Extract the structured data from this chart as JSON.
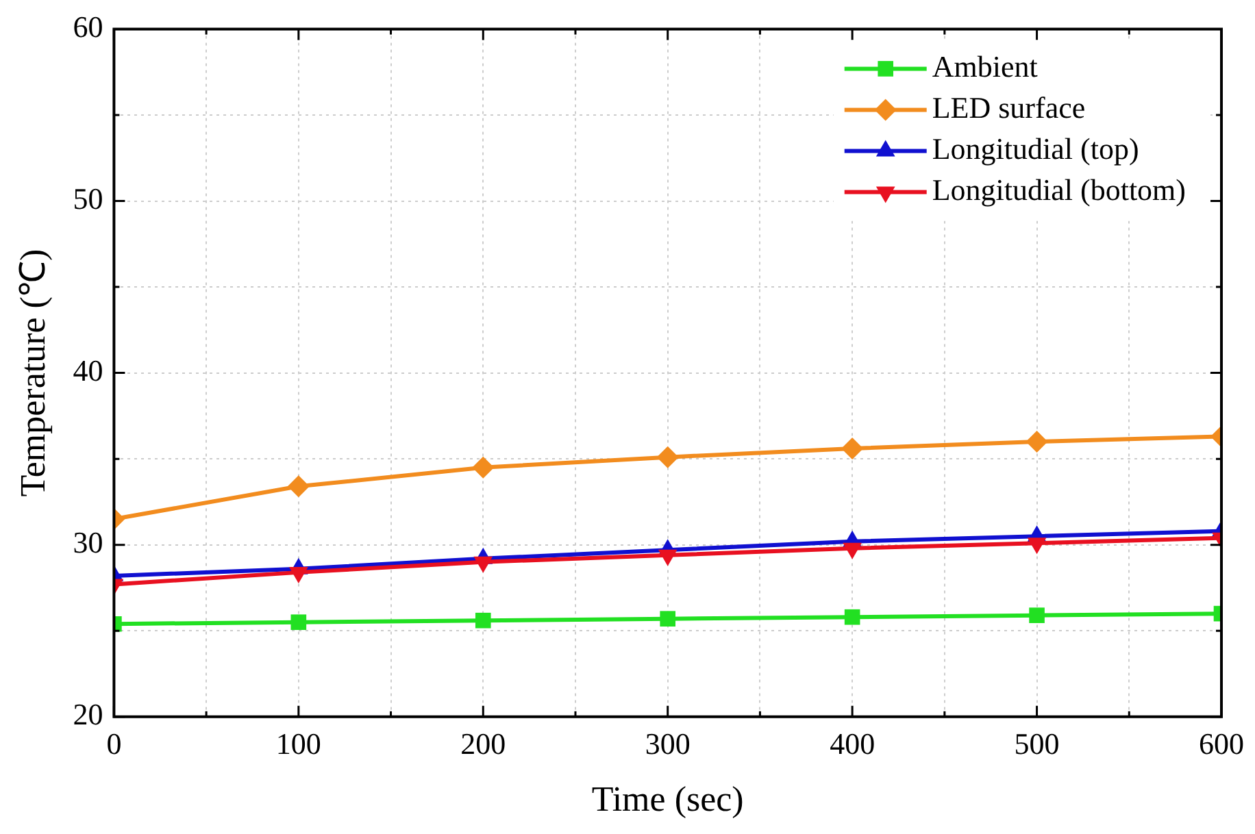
{
  "chart_data": {
    "type": "line",
    "xlabel": "Time (sec)",
    "ylabel": "Temperature (℃)",
    "x": [
      0,
      100,
      200,
      300,
      400,
      500,
      600
    ],
    "series": [
      {
        "name": "Ambient",
        "color": "#22e022",
        "marker": "square",
        "values": [
          25.4,
          25.5,
          25.6,
          25.7,
          25.8,
          25.9,
          26.0
        ]
      },
      {
        "name": "LED surface",
        "color": "#f28c1e",
        "marker": "diamond",
        "values": [
          31.5,
          33.4,
          34.5,
          35.1,
          35.6,
          36.0,
          36.3
        ]
      },
      {
        "name": "Longitudial (top)",
        "color": "#1010d0",
        "marker": "triangle",
        "values": [
          28.2,
          28.6,
          29.2,
          29.7,
          30.2,
          30.5,
          30.8
        ]
      },
      {
        "name": "Longitudial (bottom)",
        "color": "#e81020",
        "marker": "triangle-down",
        "values": [
          27.7,
          28.4,
          29.0,
          29.4,
          29.8,
          30.1,
          30.4
        ]
      }
    ],
    "xlim": [
      0,
      600
    ],
    "ylim": [
      20,
      60
    ],
    "xticks": [
      0,
      {
        "value": 50,
        "label": null
      },
      100,
      {
        "value": 150,
        "label": null
      },
      200,
      {
        "value": 250,
        "label": null
      },
      300,
      {
        "value": 350,
        "label": null
      },
      400,
      {
        "value": 450,
        "label": null
      },
      500,
      {
        "value": 550,
        "label": null
      },
      600
    ],
    "yticks": [
      20,
      {
        "value": 25,
        "label": null
      },
      30,
      {
        "value": 35,
        "label": null
      },
      40,
      {
        "value": 45,
        "label": null
      },
      50,
      {
        "value": 55,
        "label": null
      },
      60
    ],
    "grid": true,
    "legend": "top right",
    "line_style": "solid"
  }
}
